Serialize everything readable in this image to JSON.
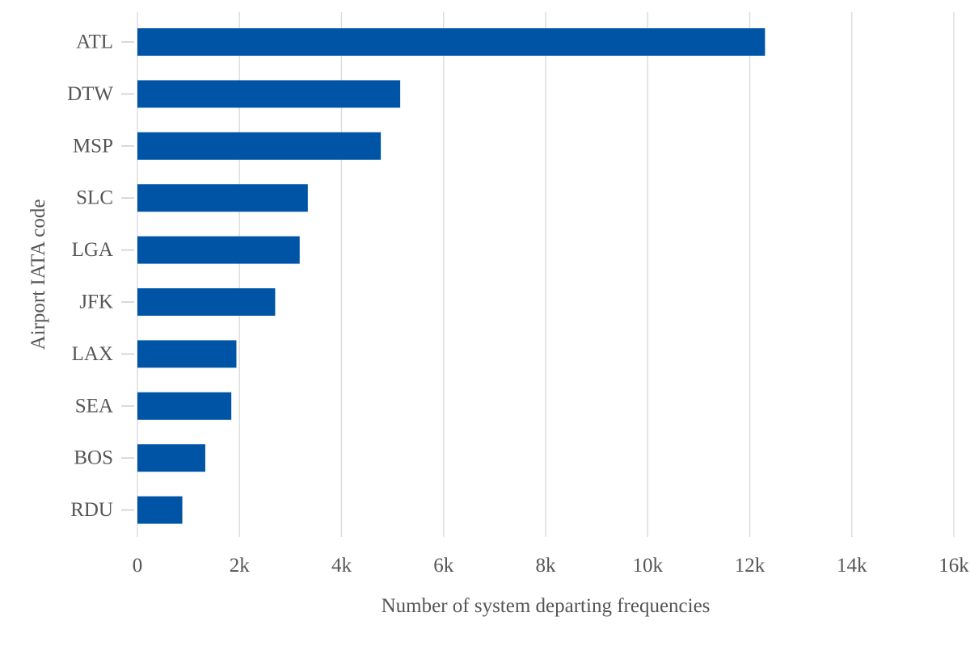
{
  "chart_data": {
    "type": "bar",
    "orientation": "horizontal",
    "title": "",
    "categories": [
      "ATL",
      "DTW",
      "MSP",
      "SLC",
      "LGA",
      "JFK",
      "LAX",
      "SEA",
      "BOS",
      "RDU"
    ],
    "values": [
      12300,
      5150,
      4770,
      3340,
      3180,
      2700,
      1940,
      1840,
      1330,
      880
    ],
    "xlabel": "Number of system departing frequencies",
    "ylabel": "Airport IATA code",
    "xlim": [
      0,
      16000
    ],
    "x_ticks": [
      0,
      2000,
      4000,
      6000,
      8000,
      10000,
      12000,
      14000,
      16000
    ],
    "x_tick_labels": [
      "0",
      "2k",
      "4k",
      "6k",
      "8k",
      "10k",
      "12k",
      "14k",
      "16k"
    ],
    "grid": "vertical",
    "legend": "none",
    "bar_color": "#0054a6"
  }
}
